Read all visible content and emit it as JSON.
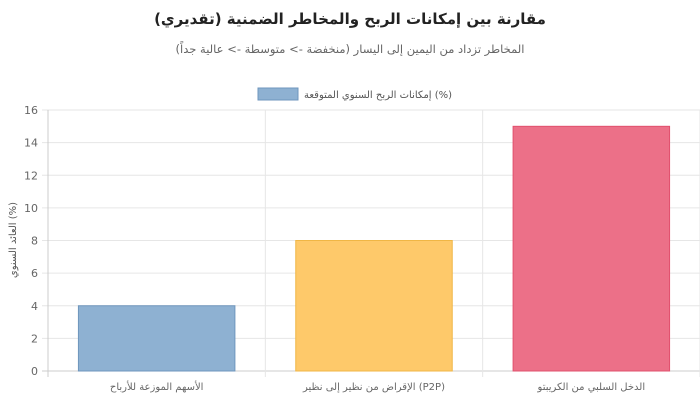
{
  "chart_data": {
    "type": "bar",
    "title": "مقارنة بين إمكانات الربح والمخاطر الضمنية (تقديري)",
    "subtitle": "المخاطر تزداد من اليمين إلى اليسار (منخفضة -> متوسطة -> عالية جداً)",
    "categories": [
      "الأسهم الموزعة للأرباح",
      "الإقراض من نظير إلى نظير (P2P)",
      "الدخل السلبي من الكريبتو"
    ],
    "series": [
      {
        "name": "إمكانات الربح السنوي المتوقعة (%)",
        "values": [
          4,
          8,
          15
        ]
      }
    ],
    "bar_colors": [
      "#8eb1d2",
      "#fec96a",
      "#ec7088"
    ],
    "bar_border_colors": [
      "#6f96bd",
      "#f0b645",
      "#e1506d"
    ],
    "ylabel": "العائد السنوي (%)",
    "ylim": [
      0,
      16
    ],
    "yticks": [
      0,
      2,
      4,
      6,
      8,
      10,
      12,
      14,
      16
    ],
    "grid": true,
    "legend_position": "top-center"
  }
}
